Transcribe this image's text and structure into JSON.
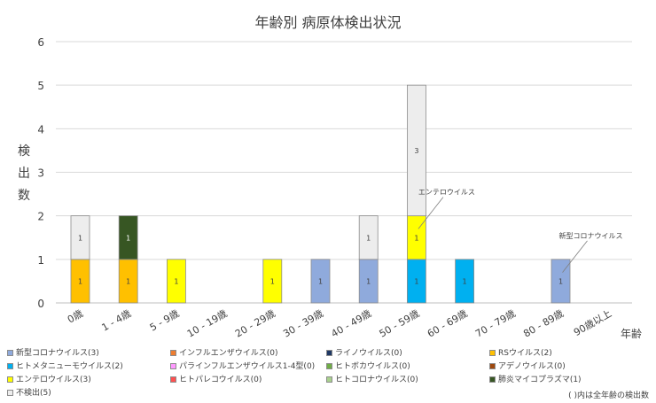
{
  "chart_data": {
    "type": "bar",
    "stacked": true,
    "title": "年齢別 病原体検出状況",
    "ylabel": "検出数",
    "xlabel": "年齢",
    "ylim": [
      0,
      6
    ],
    "yticks": [
      0,
      1,
      2,
      3,
      4,
      5,
      6
    ],
    "grid": true,
    "categories": [
      "0歳",
      "1 - 4歳",
      "5 - 9歳",
      "10 - 19歳",
      "20 - 29歳",
      "30 - 39歳",
      "40 - 49歳",
      "50 - 59歳",
      "60 - 69歳",
      "70 - 79歳",
      "80 - 89歳",
      "90歳以上"
    ],
    "series": [
      {
        "name": "新型コロナウイルス(3)",
        "color": "#8faadc",
        "values": [
          0,
          0,
          0,
          0,
          0,
          1,
          1,
          0,
          0,
          0,
          1,
          0
        ]
      },
      {
        "name": "インフルエンザウイルス(0)",
        "color": "#ed7d31",
        "values": [
          0,
          0,
          0,
          0,
          0,
          0,
          0,
          0,
          0,
          0,
          0,
          0
        ]
      },
      {
        "name": "ライノウイルス(0)",
        "color": "#1f3864",
        "values": [
          0,
          0,
          0,
          0,
          0,
          0,
          0,
          0,
          0,
          0,
          0,
          0
        ]
      },
      {
        "name": "RSウイルス(2)",
        "color": "#ffc000",
        "values": [
          1,
          1,
          0,
          0,
          0,
          0,
          0,
          0,
          0,
          0,
          0,
          0
        ]
      },
      {
        "name": "ヒトメタニューモウイルス(2)",
        "color": "#00b0f0",
        "values": [
          0,
          0,
          0,
          0,
          0,
          0,
          0,
          1,
          1,
          0,
          0,
          0
        ]
      },
      {
        "name": "パラインフルエンザウイルス1-4型(0)",
        "color": "#ff99ff",
        "values": [
          0,
          0,
          0,
          0,
          0,
          0,
          0,
          0,
          0,
          0,
          0,
          0
        ]
      },
      {
        "name": "ヒトボカウイルス(0)",
        "color": "#70ad47",
        "values": [
          0,
          0,
          0,
          0,
          0,
          0,
          0,
          0,
          0,
          0,
          0,
          0
        ]
      },
      {
        "name": "アデノウイルス(0)",
        "color": "#9e480e",
        "values": [
          0,
          0,
          0,
          0,
          0,
          0,
          0,
          0,
          0,
          0,
          0,
          0
        ]
      },
      {
        "name": "エンテロウイルス(3)",
        "color": "#ffff00",
        "values": [
          0,
          0,
          1,
          0,
          1,
          0,
          0,
          1,
          0,
          0,
          0,
          0
        ]
      },
      {
        "name": "ヒトパレコウイルス(0)",
        "color": "#ff5050",
        "values": [
          0,
          0,
          0,
          0,
          0,
          0,
          0,
          0,
          0,
          0,
          0,
          0
        ]
      },
      {
        "name": "ヒトコロナウイルス(0)",
        "color": "#a9d18e",
        "values": [
          0,
          0,
          0,
          0,
          0,
          0,
          0,
          0,
          0,
          0,
          0,
          0
        ]
      },
      {
        "name": "肺炎マイコプラズマ(1)",
        "color": "#375623",
        "values": [
          0,
          1,
          0,
          0,
          0,
          0,
          0,
          0,
          0,
          0,
          0,
          0
        ]
      },
      {
        "name": "不検出(5)",
        "color": "#ededed",
        "values": [
          1,
          0,
          0,
          0,
          0,
          0,
          1,
          3,
          0,
          0,
          0,
          0
        ]
      }
    ],
    "annotations": [
      {
        "text": "エンテロウイルス",
        "category": "50 - 59歳",
        "series": "エンテロウイルス(3)"
      },
      {
        "text": "新型コロナウイルス",
        "category": "80 - 89歳",
        "series": "新型コロナウイルス(3)"
      }
    ]
  },
  "footnote": "( )内は全年齢の検出数"
}
